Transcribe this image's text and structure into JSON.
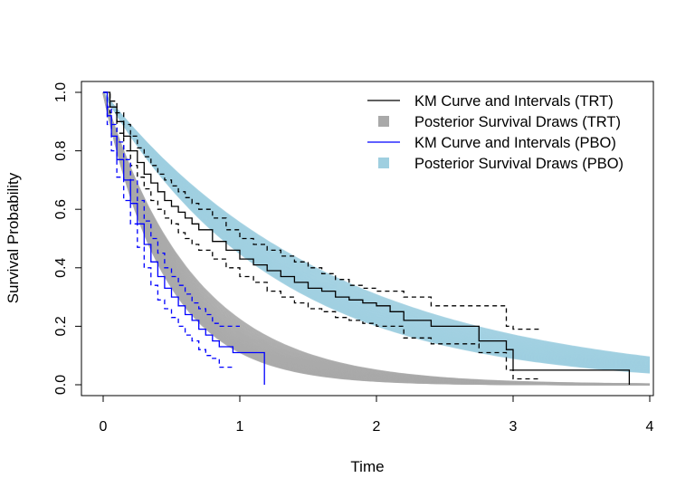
{
  "chart_data": {
    "type": "line",
    "title": "",
    "xlabel": "Time",
    "ylabel": "Survival Probability",
    "xlim": [
      0,
      4
    ],
    "ylim": [
      0,
      1
    ],
    "xticks": [
      "0",
      "1",
      "2",
      "3",
      "4"
    ],
    "yticks": [
      "0.0",
      "0.2",
      "0.4",
      "0.6",
      "0.8",
      "1.0"
    ],
    "grid": false,
    "legend_position": "top-right",
    "legend": [
      {
        "label": "KM Curve and Intervals (TRT)",
        "symbol": "line",
        "color": "#000000"
      },
      {
        "label": "Posterior Survival Draws (TRT)",
        "symbol": "square",
        "color": "#a9a9a9"
      },
      {
        "label": "KM Curve and Intervals (PBO)",
        "symbol": "line",
        "color": "#0000ff"
      },
      {
        "label": "Posterior Survival Draws (PBO)",
        "symbol": "square",
        "color": "#9fcfe0"
      }
    ],
    "series": [
      {
        "name": "Posterior Survival Draws (PBO)",
        "kind": "exponential_band",
        "color": "#9fcfe0",
        "rate_range": [
          0.59,
          0.8
        ],
        "draws": 40,
        "x_max": 4
      },
      {
        "name": "Posterior Survival Draws (TRT)",
        "kind": "exponential_band",
        "color": "#a9a9a9",
        "rate_range": [
          1.5,
          2.2
        ],
        "draws": 40,
        "x_max": 4
      },
      {
        "name": "KM Curve and Intervals (TRT)",
        "kind": "km",
        "color": "#000000",
        "estimate": {
          "x": [
            0,
            0.05,
            0.1,
            0.15,
            0.2,
            0.25,
            0.3,
            0.35,
            0.4,
            0.45,
            0.5,
            0.55,
            0.6,
            0.65,
            0.7,
            0.8,
            0.9,
            1.0,
            1.1,
            1.2,
            1.3,
            1.4,
            1.5,
            1.6,
            1.7,
            1.8,
            1.9,
            2.0,
            2.1,
            2.2,
            2.4,
            2.6,
            2.75,
            2.8,
            2.95,
            3.0,
            3.85
          ],
          "y": [
            1.0,
            0.95,
            0.9,
            0.85,
            0.8,
            0.76,
            0.72,
            0.69,
            0.66,
            0.63,
            0.61,
            0.59,
            0.57,
            0.55,
            0.53,
            0.49,
            0.46,
            0.43,
            0.41,
            0.39,
            0.37,
            0.35,
            0.33,
            0.32,
            0.3,
            0.29,
            0.28,
            0.27,
            0.25,
            0.22,
            0.2,
            0.2,
            0.15,
            0.15,
            0.12,
            0.05,
            0.0
          ]
        },
        "upper": {
          "x": [
            0,
            0.05,
            0.1,
            0.15,
            0.2,
            0.25,
            0.3,
            0.35,
            0.4,
            0.45,
            0.5,
            0.55,
            0.6,
            0.65,
            0.7,
            0.8,
            0.9,
            1.0,
            1.1,
            1.2,
            1.3,
            1.4,
            1.5,
            1.6,
            1.7,
            1.8,
            1.9,
            2.0,
            2.2,
            2.4,
            2.6,
            2.8,
            2.95,
            3.0,
            3.2
          ],
          "y": [
            1.0,
            0.97,
            0.93,
            0.89,
            0.85,
            0.81,
            0.78,
            0.75,
            0.72,
            0.7,
            0.68,
            0.66,
            0.64,
            0.62,
            0.6,
            0.57,
            0.53,
            0.5,
            0.48,
            0.46,
            0.44,
            0.42,
            0.4,
            0.38,
            0.36,
            0.34,
            0.33,
            0.32,
            0.3,
            0.27,
            0.27,
            0.27,
            0.2,
            0.19,
            0.19
          ]
        },
        "lower": {
          "x": [
            0,
            0.05,
            0.1,
            0.15,
            0.2,
            0.25,
            0.3,
            0.35,
            0.4,
            0.45,
            0.5,
            0.55,
            0.6,
            0.65,
            0.7,
            0.8,
            0.9,
            1.0,
            1.1,
            1.2,
            1.3,
            1.4,
            1.5,
            1.6,
            1.7,
            1.8,
            1.9,
            2.0,
            2.2,
            2.4,
            2.6,
            2.75,
            2.9,
            2.95,
            3.0,
            3.2
          ],
          "y": [
            1.0,
            0.93,
            0.86,
            0.8,
            0.75,
            0.71,
            0.67,
            0.63,
            0.6,
            0.57,
            0.55,
            0.52,
            0.5,
            0.48,
            0.46,
            0.43,
            0.4,
            0.37,
            0.35,
            0.32,
            0.3,
            0.28,
            0.26,
            0.25,
            0.23,
            0.22,
            0.21,
            0.2,
            0.16,
            0.14,
            0.14,
            0.11,
            0.11,
            0.05,
            0.02,
            0.02
          ]
        }
      },
      {
        "name": "KM Curve and Intervals (PBO)",
        "kind": "km",
        "color": "#0000ff",
        "estimate": {
          "x": [
            0,
            0.03,
            0.06,
            0.1,
            0.15,
            0.2,
            0.25,
            0.3,
            0.35,
            0.4,
            0.45,
            0.5,
            0.55,
            0.6,
            0.65,
            0.7,
            0.75,
            0.8,
            0.85,
            0.95,
            1.05,
            1.18
          ],
          "y": [
            1.0,
            0.92,
            0.85,
            0.77,
            0.7,
            0.62,
            0.55,
            0.48,
            0.42,
            0.37,
            0.33,
            0.3,
            0.27,
            0.24,
            0.22,
            0.19,
            0.17,
            0.15,
            0.13,
            0.11,
            0.11,
            0.0
          ]
        },
        "upper": {
          "x": [
            0,
            0.03,
            0.06,
            0.1,
            0.15,
            0.2,
            0.25,
            0.3,
            0.35,
            0.4,
            0.45,
            0.5,
            0.55,
            0.6,
            0.65,
            0.7,
            0.75,
            0.8,
            0.85,
            1.0
          ],
          "y": [
            1.0,
            0.95,
            0.89,
            0.83,
            0.77,
            0.7,
            0.63,
            0.56,
            0.5,
            0.45,
            0.4,
            0.37,
            0.34,
            0.31,
            0.28,
            0.26,
            0.24,
            0.21,
            0.2,
            0.2
          ]
        },
        "lower": {
          "x": [
            0,
            0.03,
            0.06,
            0.1,
            0.15,
            0.2,
            0.25,
            0.3,
            0.35,
            0.4,
            0.45,
            0.5,
            0.55,
            0.6,
            0.65,
            0.7,
            0.75,
            0.8,
            0.85,
            0.95
          ],
          "y": [
            1.0,
            0.89,
            0.8,
            0.71,
            0.63,
            0.55,
            0.47,
            0.4,
            0.34,
            0.29,
            0.26,
            0.23,
            0.2,
            0.17,
            0.15,
            0.12,
            0.1,
            0.09,
            0.06,
            0.06
          ]
        }
      }
    ]
  }
}
